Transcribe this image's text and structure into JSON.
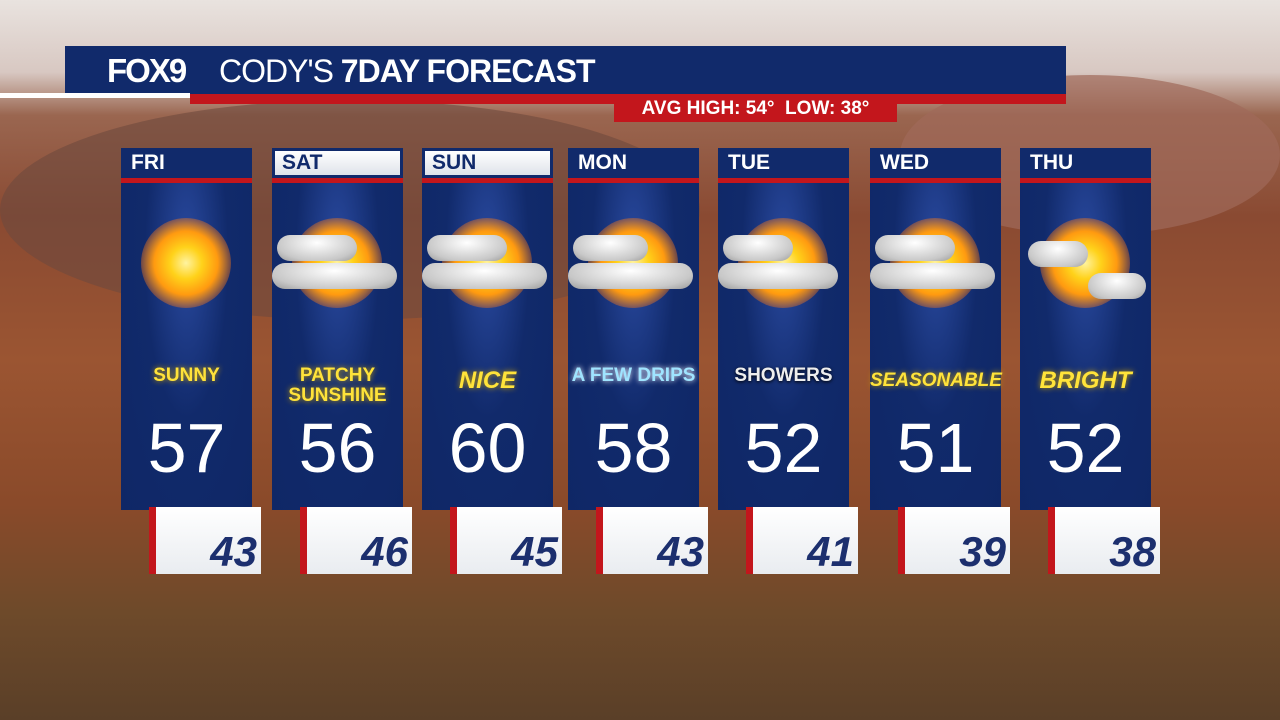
{
  "header": {
    "logo": "FOX9",
    "title_light": "CODY'S ",
    "title_bold": "7DAY FORECAST",
    "averages": "AVG HIGH: 54°  LOW: 38°"
  },
  "colors": {
    "navy": "#112a6b",
    "red": "#c3161c",
    "condition_yellow": "#ffe33a"
  },
  "days": [
    {
      "day": "FRI",
      "condition": "SUNNY",
      "high": "57",
      "low": "43",
      "icon": "sun-icon"
    },
    {
      "day": "SAT",
      "condition": "PATCHY SUNSHINE",
      "high": "56",
      "low": "46",
      "icon": "partly-cloudy-icon"
    },
    {
      "day": "SUN",
      "condition": "NICE",
      "high": "60",
      "low": "45",
      "icon": "partly-cloudy-icon"
    },
    {
      "day": "MON",
      "condition": "A FEW DRIPS",
      "high": "58",
      "low": "43",
      "icon": "sun-clouds-drizzle-icon"
    },
    {
      "day": "TUE",
      "condition": "SHOWERS",
      "high": "52",
      "low": "41",
      "icon": "showers-icon"
    },
    {
      "day": "WED",
      "condition": "SEASONABLE",
      "high": "51",
      "low": "39",
      "icon": "partly-cloudy-icon"
    },
    {
      "day": "THU",
      "condition": "BRIGHT",
      "high": "52",
      "low": "38",
      "icon": "mostly-sunny-icon"
    }
  ]
}
